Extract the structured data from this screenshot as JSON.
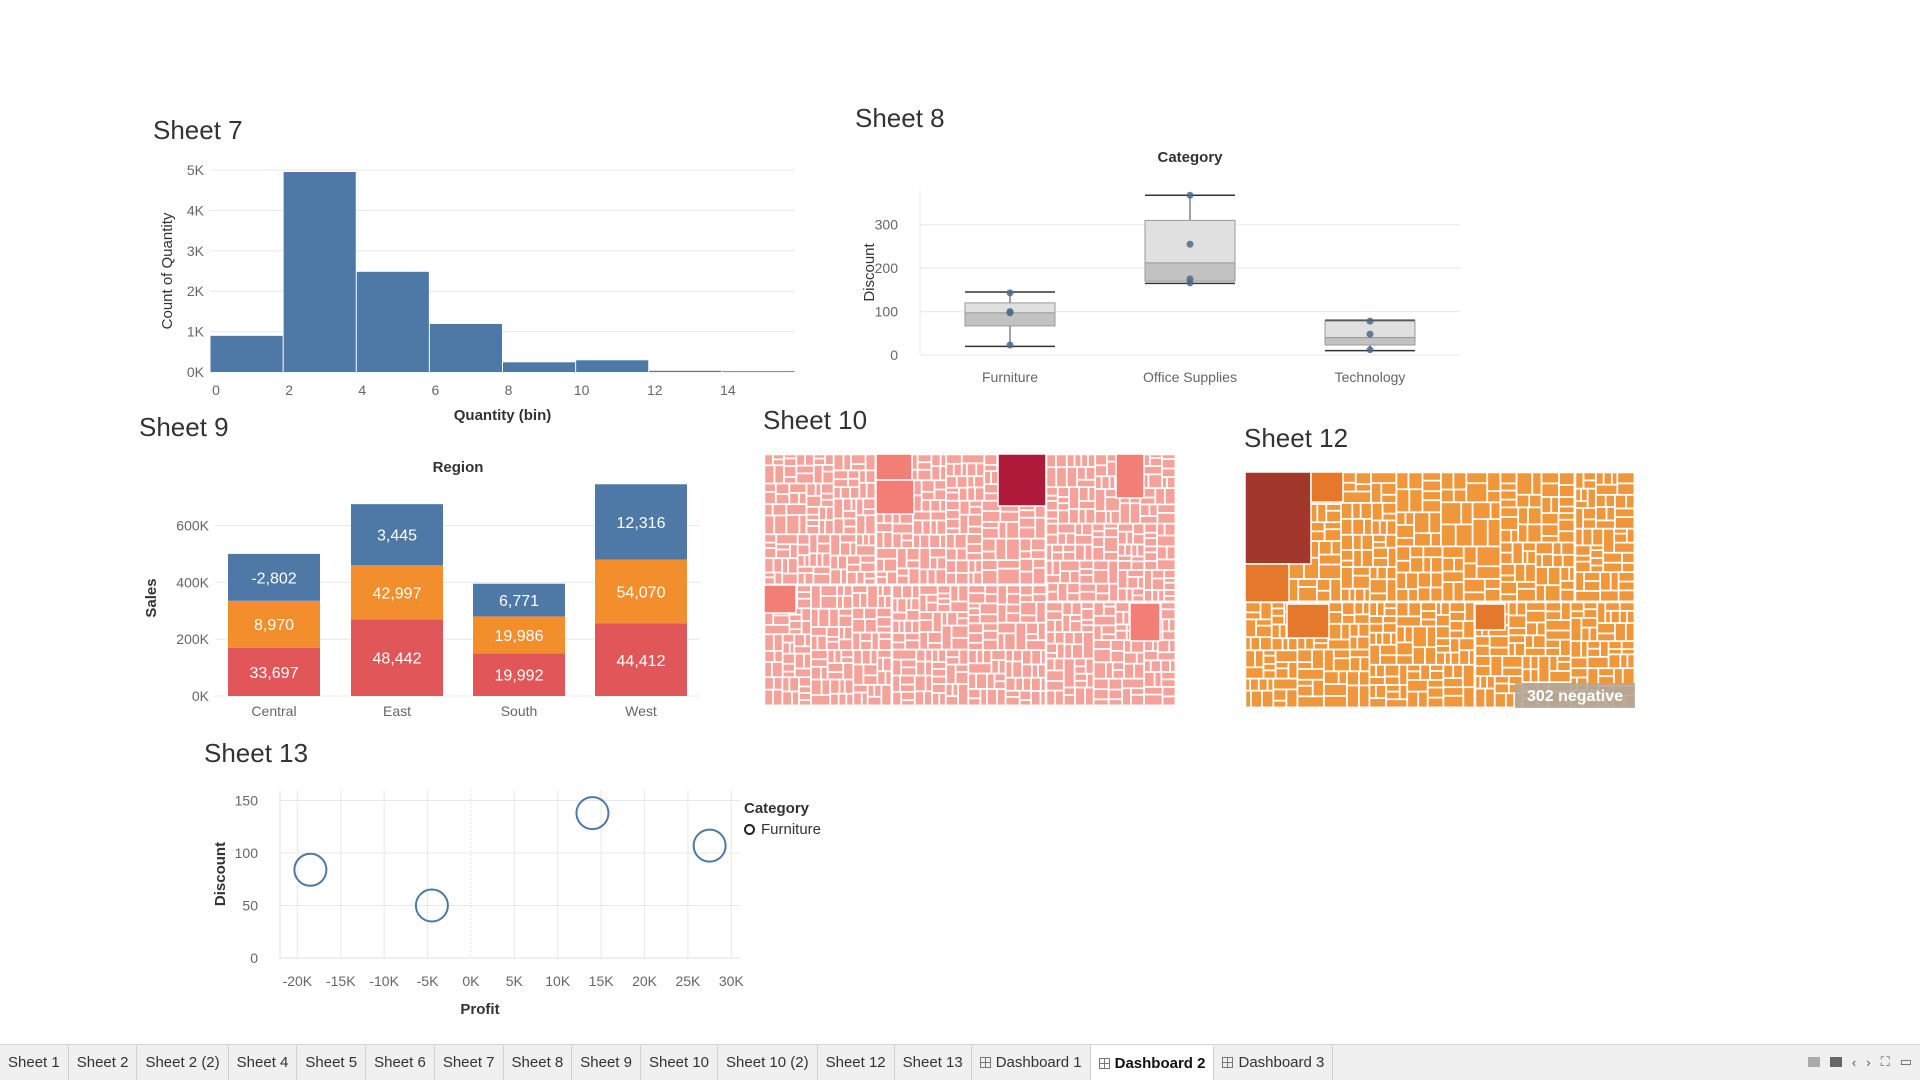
{
  "sheet_titles": {
    "s7": "Sheet 7",
    "s8": "Sheet 8",
    "s9": "Sheet 9",
    "s10": "Sheet 10",
    "s12": "Sheet 12",
    "s13": "Sheet 13"
  },
  "treemap12_label": "302 negative",
  "chart_data": [
    {
      "id": "sheet7",
      "type": "bar",
      "title": "Sheet 7",
      "xlabel": "Quantity (bin)",
      "ylabel": "Count of Quantity",
      "bin_width": 2,
      "bins": [
        {
          "x0": 0,
          "x1": 2,
          "value": 895
        },
        {
          "x0": 2,
          "x1": 4,
          "value": 4950
        },
        {
          "x0": 4,
          "x1": 6,
          "value": 2480
        },
        {
          "x0": 6,
          "x1": 8,
          "value": 1190
        },
        {
          "x0": 8,
          "x1": 10,
          "value": 240
        },
        {
          "x0": 10,
          "x1": 12,
          "value": 290
        },
        {
          "x0": 12,
          "x1": 14,
          "value": 30
        },
        {
          "x0": 14,
          "x1": 16,
          "value": 20
        }
      ],
      "xticks": [
        "0",
        "2",
        "4",
        "6",
        "8",
        "10",
        "12",
        "14"
      ],
      "yticks": [
        "0K",
        "1K",
        "2K",
        "3K",
        "4K",
        "5K"
      ],
      "xlim": [
        0,
        16
      ],
      "ylim": [
        0,
        5000
      ],
      "color": "#4e79a7"
    },
    {
      "id": "sheet8",
      "type": "box",
      "title": "Sheet 8",
      "header": "Category",
      "ylabel": "Discount",
      "categories": [
        "Furniture",
        "Office Supplies",
        "Technology"
      ],
      "boxes": [
        {
          "min": 20,
          "q1": 67,
          "median": 97,
          "q3": 120,
          "max": 145,
          "points": [
            23,
            97,
            100,
            143
          ]
        },
        {
          "min": 165,
          "q1": 170,
          "median": 212,
          "q3": 310,
          "max": 368,
          "points": [
            166,
            175,
            255,
            368
          ]
        },
        {
          "min": 10,
          "q1": 23,
          "median": 40,
          "q3": 78,
          "max": 80,
          "points": [
            12,
            48,
            78
          ]
        }
      ],
      "yticks": [
        "0",
        "100",
        "200",
        "300"
      ],
      "ylim": [
        0,
        380
      ]
    },
    {
      "id": "sheet9",
      "type": "bar",
      "stacked": true,
      "title": "Sheet 9",
      "header": "Region",
      "ylabel": "Sales",
      "categories": [
        "Central",
        "East",
        "South",
        "West"
      ],
      "series": [
        {
          "color": "#e15759",
          "values": [
            170000,
            270000,
            150000,
            255000
          ],
          "labels": [
            "33,697",
            "48,442",
            "19,992",
            "44,412"
          ]
        },
        {
          "color": "#f28e2b",
          "values": [
            165000,
            190000,
            130000,
            225000
          ],
          "labels": [
            "8,970",
            "42,997",
            "19,986",
            "54,070"
          ]
        },
        {
          "color": "#4e79a7",
          "values": [
            165000,
            215000,
            115000,
            265000
          ],
          "labels": [
            "-2,802",
            "3,445",
            "6,771",
            "12,316"
          ]
        }
      ],
      "yticks": [
        "0K",
        "200K",
        "400K",
        "600K"
      ],
      "ylim": [
        0,
        760000
      ]
    },
    {
      "id": "sheet10",
      "type": "treemap",
      "title": "Sheet 10",
      "base_color": "#f4a29a",
      "highlight_colors": [
        "#f27e75",
        "#b01a3a"
      ]
    },
    {
      "id": "sheet12",
      "type": "treemap",
      "title": "Sheet 12",
      "base_color": "#f0963b",
      "highlight_colors": [
        "#a2372b",
        "#e5782a"
      ],
      "annotation": "302 negative"
    },
    {
      "id": "sheet13",
      "type": "scatter",
      "title": "Sheet 13",
      "xlabel": "Profit",
      "ylabel": "Discount",
      "legend_title": "Category",
      "series": [
        {
          "name": "Furniture",
          "color": "#4e79a7",
          "points": [
            [
              -18500,
              84
            ],
            [
              -4500,
              50
            ],
            [
              14000,
              138
            ],
            [
              27500,
              107
            ]
          ]
        }
      ],
      "xticks": [
        "-20K",
        "-15K",
        "-10K",
        "-5K",
        "0K",
        "5K",
        "10K",
        "15K",
        "20K",
        "25K",
        "30K"
      ],
      "yticks": [
        "0",
        "50",
        "100",
        "150"
      ],
      "xlim": [
        -22000,
        31000
      ],
      "ylim": [
        0,
        160
      ],
      "legend_position": "right"
    }
  ],
  "tabs": [
    {
      "label": "Sheet 1",
      "icon": "",
      "active": false
    },
    {
      "label": "Sheet 2",
      "icon": "",
      "active": false
    },
    {
      "label": "Sheet 2 (2)",
      "icon": "",
      "active": false
    },
    {
      "label": "Sheet 4",
      "icon": "",
      "active": false
    },
    {
      "label": "Sheet 5",
      "icon": "",
      "active": false
    },
    {
      "label": "Sheet 6",
      "icon": "",
      "active": false
    },
    {
      "label": "Sheet 7",
      "icon": "",
      "active": false
    },
    {
      "label": "Sheet 8",
      "icon": "",
      "active": false
    },
    {
      "label": "Sheet 9",
      "icon": "",
      "active": false
    },
    {
      "label": "Sheet 10",
      "icon": "",
      "active": false
    },
    {
      "label": "Sheet 10 (2)",
      "icon": "",
      "active": false
    },
    {
      "label": "Sheet 12",
      "icon": "",
      "active": false
    },
    {
      "label": "Sheet 13",
      "icon": "",
      "active": false
    },
    {
      "label": "Dashboard 1",
      "icon": "dashboard-icon",
      "active": false
    },
    {
      "label": "Dashboard 2",
      "icon": "dashboard-icon",
      "active": true
    },
    {
      "label": "Dashboard 3",
      "icon": "dashboard-icon",
      "active": false
    }
  ],
  "tab_controls": [
    "show-sheet-sorter-icon",
    "show-filmstrip-icon",
    "prev-tab-icon",
    "next-tab-icon",
    "fullscreen-icon",
    "presentation-icon"
  ]
}
